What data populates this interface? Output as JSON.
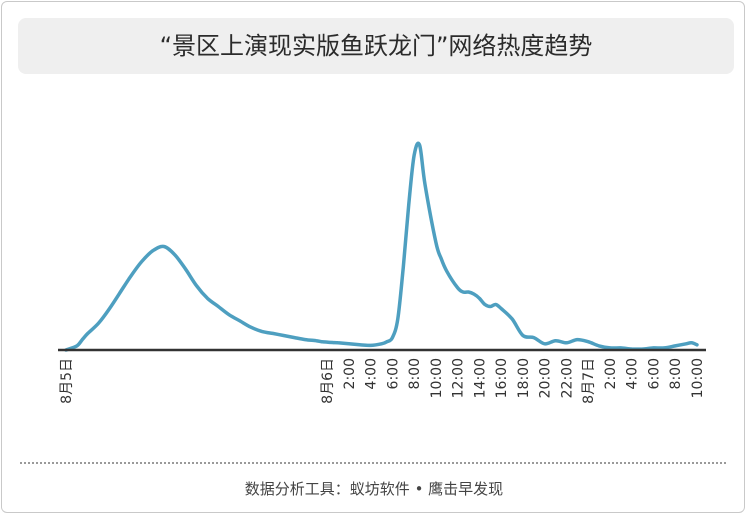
{
  "title": "“景区上演现实版鱼跃龙门”网络热度趋势",
  "footer": "数据分析工具：蚁坊软件 • 鹰击早发现",
  "colors": {
    "line": "#4e9fc0",
    "axis": "#333333",
    "title_bg": "#efefef"
  },
  "chart_data": {
    "type": "line",
    "title": "“景区上演现实版鱼跃龙门”网络热度趋势",
    "xlabel": "",
    "ylabel": "",
    "grid": false,
    "x_tick_labels": [
      "8月5日",
      "8月6日",
      "2:00",
      "4:00",
      "6:00",
      "8:00",
      "10:00",
      "12:00",
      "14:00",
      "16:00",
      "18:00",
      "20:00",
      "22:00",
      "8月7日",
      "2:00",
      "4:00",
      "6:00",
      "8:00",
      "10:00"
    ],
    "x_ticks_hours": [
      0,
      24,
      26,
      28,
      30,
      32,
      34,
      36,
      38,
      40,
      42,
      44,
      46,
      48,
      50,
      52,
      54,
      56,
      58
    ],
    "series": [
      {
        "x_hours": [
          0,
          1,
          1.5,
          2,
          3,
          4,
          5,
          6,
          7,
          8,
          9,
          10,
          11,
          12,
          13,
          14,
          15,
          16,
          17,
          18,
          19,
          20,
          21,
          22,
          23,
          23.5,
          24,
          24.5,
          25,
          26,
          27,
          28,
          29,
          29.5,
          30,
          30.5,
          31,
          31.5,
          32,
          32.5,
          33,
          34,
          34.5,
          35,
          36,
          36.5,
          37,
          37.5,
          38,
          38.5,
          39,
          39.5,
          40,
          41,
          42,
          43,
          44,
          45,
          46,
          47,
          48,
          49,
          50,
          51,
          52,
          53,
          54,
          55,
          56,
          57,
          57.5,
          58
        ],
        "values": [
          0,
          2,
          5,
          8,
          13,
          20,
          28,
          36,
          43,
          48,
          50,
          46,
          39,
          31,
          25,
          21,
          17,
          14,
          11,
          9,
          8,
          7,
          6,
          5,
          4.5,
          4,
          3.8,
          3.6,
          3.5,
          3,
          2.5,
          2.2,
          3,
          4,
          6,
          15,
          40,
          70,
          94,
          99,
          80,
          52,
          44,
          38,
          30,
          28,
          28,
          27,
          25,
          22,
          21,
          22,
          20,
          15,
          7,
          6,
          3,
          4.5,
          3.5,
          5,
          4,
          2,
          1,
          1,
          0.5,
          0.5,
          1,
          1,
          2,
          3,
          3.5,
          2.5
        ]
      }
    ],
    "ylim": [
      0,
      100
    ]
  }
}
